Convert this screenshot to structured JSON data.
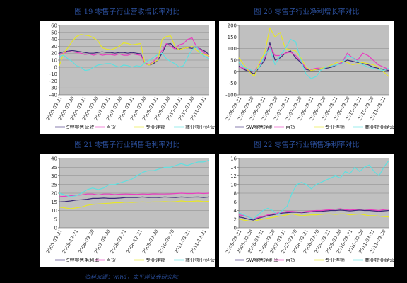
{
  "source_note": "资料来源：wind，太平洋证券研究院",
  "chart_data": [
    {
      "type": "line",
      "title": "图 19    零售子行业营收增长率对比",
      "ylim": [
        -40,
        60
      ],
      "ytick_step": 10,
      "x_ticks": [
        "2005-03-31",
        "2005-09-30",
        "2006-03-31",
        "2006-09-30",
        "2007-03-31",
        "2007-09-30",
        "2008-03-31",
        "2008-09-30",
        "2009-03-31",
        "2009-09-30",
        "2010-03-31",
        "2010-09-30",
        "2011-03-31"
      ],
      "legend": [
        "SW零售营收",
        "百货",
        "专业连锁",
        "商业物业经营"
      ],
      "series": [
        {
          "name": "SW零售营收",
          "color": "#3d2a7a",
          "values": [
            20,
            22,
            23,
            24,
            23,
            22,
            21,
            20,
            20,
            21,
            22,
            21,
            21,
            20,
            21,
            21,
            20,
            21,
            20,
            19,
            5,
            3,
            5,
            10,
            20,
            33,
            34,
            27,
            26,
            27,
            28,
            27,
            29,
            26,
            23,
            18
          ]
        },
        {
          "name": "百货",
          "color": "#e83fbf",
          "values": [
            18,
            20,
            22,
            22,
            21,
            20,
            18,
            19,
            17,
            19,
            17,
            18,
            18,
            17,
            19,
            17,
            17,
            19,
            18,
            17,
            6,
            4,
            8,
            15,
            24,
            34,
            30,
            26,
            32,
            34,
            40,
            42,
            30,
            25,
            20,
            15
          ]
        },
        {
          "name": "专业连锁",
          "color": "#e6e62a",
          "values": [
            2,
            20,
            28,
            37,
            44,
            47,
            46,
            45,
            42,
            38,
            28,
            26,
            25,
            27,
            30,
            35,
            34,
            32,
            33,
            34,
            5,
            3,
            7,
            10,
            40,
            44,
            45,
            30,
            25,
            27,
            28,
            30,
            25,
            20,
            18,
            16
          ]
        },
        {
          "name": "商业物业经营",
          "color": "#5ee0e0",
          "values": [
            15,
            17,
            12,
            8,
            2,
            0,
            -5,
            -4,
            0,
            3,
            4,
            5,
            5,
            2,
            0,
            3,
            2,
            0,
            2,
            1,
            6,
            10,
            14,
            18,
            20,
            12,
            8,
            5,
            0,
            2,
            15,
            25,
            30,
            20,
            15,
            12
          ]
        }
      ]
    },
    {
      "type": "line",
      "title": "图 20    零售子行业净利增长率对比",
      "ylim": [
        -100,
        200
      ],
      "ytick_step": 50,
      "x_ticks": [
        "2005-03-31",
        "2005-09-30",
        "2006-03-31",
        "2006-09-30",
        "2007-03-31",
        "2007-09-30",
        "2008-03-31",
        "2008-09-30",
        "2009-03-31",
        "2009-09-30",
        "2010-03-31",
        "2010-09-30",
        "2011-03-31"
      ],
      "legend": [
        "SW零售净利",
        "百货",
        "专业连锁",
        "商业物业经营"
      ],
      "series": [
        {
          "name": "SW零售净利",
          "color": "#3d2a7a",
          "values": [
            25,
            10,
            0,
            -10,
            20,
            50,
            125,
            50,
            60,
            80,
            90,
            60,
            40,
            10,
            5,
            10,
            12,
            15,
            20,
            30,
            40,
            50,
            45,
            40,
            35,
            30,
            20,
            15,
            10,
            5
          ]
        },
        {
          "name": "百货",
          "color": "#e83fbf",
          "values": [
            20,
            15,
            5,
            0,
            30,
            60,
            110,
            70,
            70,
            80,
            85,
            70,
            45,
            15,
            10,
            15,
            15,
            20,
            25,
            30,
            40,
            80,
            60,
            50,
            80,
            70,
            50,
            30,
            20,
            10
          ]
        },
        {
          "name": "专业连锁",
          "color": "#e6e62a",
          "values": [
            60,
            30,
            0,
            -20,
            40,
            80,
            190,
            150,
            170,
            100,
            95,
            90,
            60,
            20,
            5,
            10,
            15,
            20,
            30,
            40,
            45,
            40,
            30,
            35,
            40,
            35,
            30,
            20,
            0,
            -20
          ]
        },
        {
          "name": "商业物业经营",
          "color": "#5ee0e0",
          "values": [
            40,
            20,
            10,
            0,
            20,
            70,
            100,
            30,
            70,
            100,
            140,
            130,
            50,
            -10,
            -30,
            -20,
            10,
            20,
            25,
            30,
            35,
            70,
            60,
            45,
            30,
            20,
            15,
            10,
            5,
            15
          ]
        }
      ]
    },
    {
      "type": "line",
      "title": "图 21    零售子行业销售毛利率对比",
      "ylim": [
        0,
        40
      ],
      "ytick_step": 5,
      "x_ticks": [
        "2005-03-31",
        "2005-12-31",
        "2006-09-30",
        "2007-06-30",
        "2008-03-31",
        "2008-12-31",
        "2009-09-30",
        "2010-06-30",
        "2011-03-31",
        "2011-12-31"
      ],
      "legend": [
        "SW零售毛利率",
        "百货",
        "专业连锁",
        "商业物业经营"
      ],
      "series": [
        {
          "name": "SW零售毛利率",
          "color": "#3d2a7a",
          "values": [
            15,
            15.2,
            15.5,
            16,
            16.2,
            16.5,
            17,
            17,
            17.2,
            17,
            17,
            17.2,
            17.5,
            17.5,
            17.5,
            17.8,
            17.5,
            17.6,
            17.5,
            17.8,
            17.6,
            17.5,
            17.8,
            17.6,
            17.7,
            17.8,
            17.5,
            17.8
          ]
        },
        {
          "name": "百货",
          "color": "#e83fbf",
          "values": [
            18,
            18.2,
            18.5,
            18.8,
            19,
            19.5,
            19.5,
            19,
            19.5,
            19.5,
            19.2,
            19.4,
            19.5,
            19.4,
            19.3,
            19.5,
            19.4,
            19.6,
            19.5,
            19.5,
            19.6,
            19.8,
            20,
            19.8,
            19.8,
            20,
            19.8,
            20
          ]
        },
        {
          "name": "专业连锁",
          "color": "#e6e62a",
          "values": [
            12,
            11.5,
            11,
            11.5,
            12,
            13,
            13.5,
            13.8,
            14,
            14.2,
            14.5,
            14.5,
            14.8,
            14.6,
            14.8,
            15,
            14.8,
            15,
            15,
            15.2,
            15,
            15.2,
            15.5,
            15.2,
            15.3,
            15.5,
            15.2,
            15.3
          ]
        },
        {
          "name": "商业物业经营",
          "color": "#5ee0e0",
          "values": [
            20,
            19,
            18,
            18.5,
            20,
            22,
            23,
            22,
            23,
            25,
            25,
            26,
            27,
            28,
            30,
            32,
            33,
            33,
            34,
            35,
            35,
            36,
            37,
            36,
            37,
            38,
            38,
            39
          ]
        }
      ]
    },
    {
      "type": "line",
      "title": "图 22    零售子行业销售净利率对比",
      "ylim": [
        0,
        16
      ],
      "ytick_step": 2,
      "x_ticks": [
        "2005-03-31",
        "2005-09-30",
        "2006-03-31",
        "2006-09-30",
        "2007-03-31",
        "2007-09-30",
        "2008-03-31",
        "2008-09-30",
        "2009-03-31",
        "2009-09-30",
        "2010-03-31",
        "2010-09-30",
        "2011-03-31",
        "2011-09-30"
      ],
      "legend": [
        "SW零售净利率",
        "百货",
        "专业连锁",
        "商业物业经营"
      ],
      "series": [
        {
          "name": "SW零售净利率",
          "color": "#3d2a7a",
          "values": [
            2.5,
            2.3,
            2,
            1.8,
            2.2,
            2.5,
            2.8,
            3,
            3.2,
            3.4,
            3.5,
            3.6,
            3.6,
            3.5,
            3.6,
            3.7,
            3.8,
            3.8,
            3.9,
            4,
            4,
            4.1,
            4,
            3.9,
            4,
            4.1,
            4,
            4,
            3.9,
            3.8,
            3.9,
            4
          ]
        },
        {
          "name": "百货",
          "color": "#e83fbf",
          "values": [
            3,
            2.8,
            2.5,
            2,
            2.4,
            2.6,
            3,
            3.2,
            3.4,
            3.6,
            3.8,
            3.8,
            3.7,
            3.6,
            3.8,
            3.9,
            4,
            4,
            4.1,
            4.2,
            4.3,
            4.4,
            4.2,
            4.1,
            4.2,
            4.3,
            4.3,
            4.2,
            4.1,
            4,
            4.2,
            4.3
          ]
        },
        {
          "name": "专业连锁",
          "color": "#e6e62a",
          "values": [
            2,
            1.8,
            1.6,
            1.5,
            1.8,
            2,
            2.2,
            2.4,
            2.6,
            2.8,
            3,
            3.2,
            3,
            2.8,
            2.9,
            3,
            3,
            3.1,
            3.2,
            3.2,
            3.1,
            3.2,
            3.2,
            3,
            3.1,
            3.2,
            3,
            2.8,
            2.8,
            2.7,
            2.6,
            2.5
          ]
        },
        {
          "name": "商业物业经营",
          "color": "#5ee0e0",
          "values": [
            3.5,
            3,
            2.5,
            2,
            3,
            4,
            4.5,
            4,
            3,
            4,
            5,
            8,
            10,
            10.5,
            10,
            9,
            10,
            10.5,
            11,
            11.5,
            12,
            11.5,
            13,
            12.5,
            14,
            13,
            14,
            14.5,
            13,
            12,
            14,
            15.5
          ]
        }
      ]
    }
  ]
}
